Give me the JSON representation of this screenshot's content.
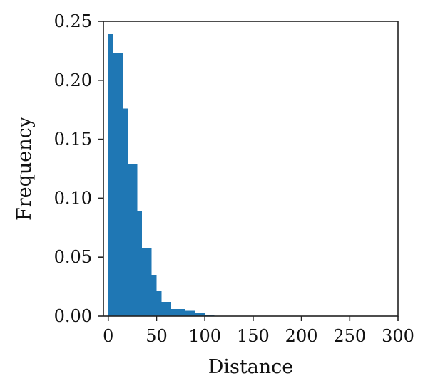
{
  "chart_data": {
    "type": "bar",
    "title": "",
    "xlabel": "Distance",
    "ylabel": "Frequency",
    "xlim": [
      -5,
      300
    ],
    "ylim": [
      0,
      0.25
    ],
    "xticks": [
      0,
      50,
      100,
      150,
      200,
      250,
      300
    ],
    "xtick_labels": [
      "0",
      "50",
      "100",
      "150",
      "200",
      "250",
      "300"
    ],
    "yticks": [
      0.0,
      0.05,
      0.1,
      0.15,
      0.2,
      0.25
    ],
    "ytick_labels": [
      "0.00",
      "0.05",
      "0.10",
      "0.15",
      "0.20",
      "0.25"
    ],
    "grid": false,
    "legend": "none",
    "bar_color": "#1f77b4",
    "bins": [
      {
        "x0": 0,
        "x1": 5,
        "value": 0.239
      },
      {
        "x0": 5,
        "x1": 15,
        "value": 0.223
      },
      {
        "x0": 15,
        "x1": 20,
        "value": 0.176
      },
      {
        "x0": 20,
        "x1": 30,
        "value": 0.129
      },
      {
        "x0": 30,
        "x1": 35,
        "value": 0.089
      },
      {
        "x0": 35,
        "x1": 45,
        "value": 0.058
      },
      {
        "x0": 45,
        "x1": 50,
        "value": 0.035
      },
      {
        "x0": 50,
        "x1": 55,
        "value": 0.021
      },
      {
        "x0": 55,
        "x1": 65,
        "value": 0.012
      },
      {
        "x0": 65,
        "x1": 80,
        "value": 0.006
      },
      {
        "x0": 80,
        "x1": 90,
        "value": 0.0045
      },
      {
        "x0": 90,
        "x1": 100,
        "value": 0.0028
      },
      {
        "x0": 100,
        "x1": 110,
        "value": 0.0012
      }
    ]
  }
}
